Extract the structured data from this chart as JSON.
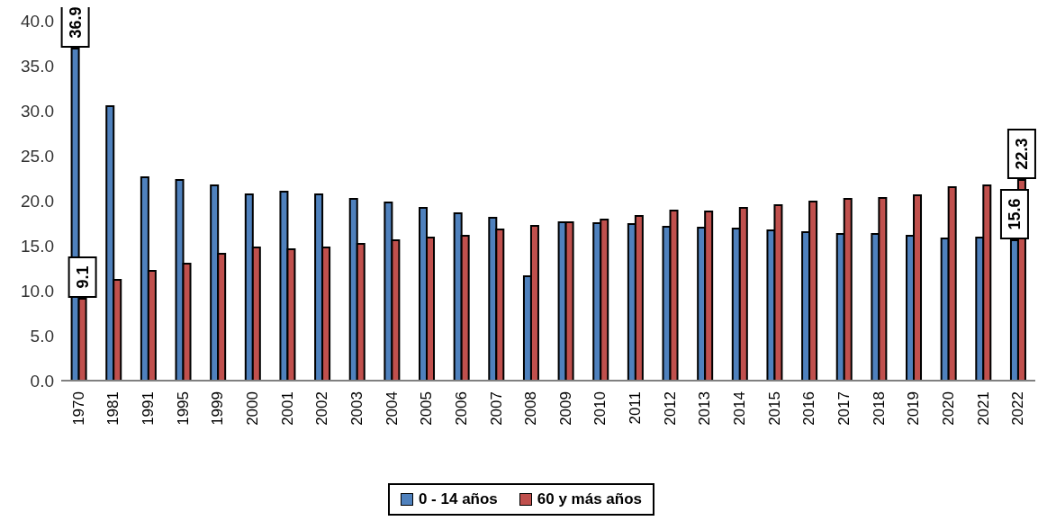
{
  "chart_data": {
    "type": "bar",
    "categories": [
      "1970",
      "1981",
      "1991",
      "1995",
      "1999",
      "2000",
      "2001",
      "2002",
      "2003",
      "2004",
      "2005",
      "2006",
      "2007",
      "2008",
      "2009",
      "2010",
      "2011",
      "2012",
      "2013",
      "2014",
      "2015",
      "2016",
      "2017",
      "2018",
      "2019",
      "2020",
      "2021",
      "2022"
    ],
    "series": [
      {
        "name": "0 - 14 años",
        "color": "#4f81bd",
        "values": [
          36.9,
          30.5,
          22.6,
          22.3,
          21.7,
          20.7,
          21.0,
          20.7,
          20.2,
          19.8,
          19.2,
          18.6,
          18.1,
          11.6,
          17.6,
          17.5,
          17.4,
          17.1,
          17.0,
          16.9,
          16.7,
          16.5,
          16.3,
          16.3,
          16.1,
          15.8,
          15.9,
          15.6
        ],
        "value_labels": [
          "36.9",
          null,
          null,
          null,
          null,
          null,
          null,
          null,
          null,
          null,
          null,
          null,
          null,
          null,
          null,
          null,
          null,
          null,
          null,
          null,
          null,
          null,
          null,
          null,
          null,
          null,
          null,
          "15.6"
        ]
      },
      {
        "name": "60 y más años",
        "color": "#c0504d",
        "values": [
          9.1,
          11.2,
          12.2,
          13.0,
          14.1,
          14.8,
          14.6,
          14.8,
          15.2,
          15.6,
          15.9,
          16.1,
          16.8,
          17.2,
          17.6,
          17.9,
          18.3,
          18.9,
          18.8,
          19.2,
          19.5,
          19.9,
          20.2,
          20.3,
          20.6,
          21.5,
          21.7,
          22.3
        ],
        "value_labels": [
          "9.1",
          null,
          null,
          null,
          null,
          null,
          null,
          null,
          null,
          null,
          null,
          null,
          null,
          null,
          null,
          null,
          null,
          null,
          null,
          null,
          null,
          null,
          null,
          null,
          null,
          null,
          null,
          "22.3"
        ]
      }
    ],
    "ylim": [
      0,
      40
    ],
    "yticks": [
      {
        "value": 0,
        "label": "0.0"
      },
      {
        "value": 5,
        "label": "5.0"
      },
      {
        "value": 10,
        "label": "10.0"
      },
      {
        "value": 15,
        "label": "15.0"
      },
      {
        "value": 20,
        "label": "20.0"
      },
      {
        "value": 25,
        "label": "25.0"
      },
      {
        "value": 30,
        "label": "30.0"
      },
      {
        "value": 35,
        "label": "35.0"
      },
      {
        "value": 40,
        "label": "40.0"
      }
    ],
    "grid": false,
    "legend": "bottom"
  }
}
